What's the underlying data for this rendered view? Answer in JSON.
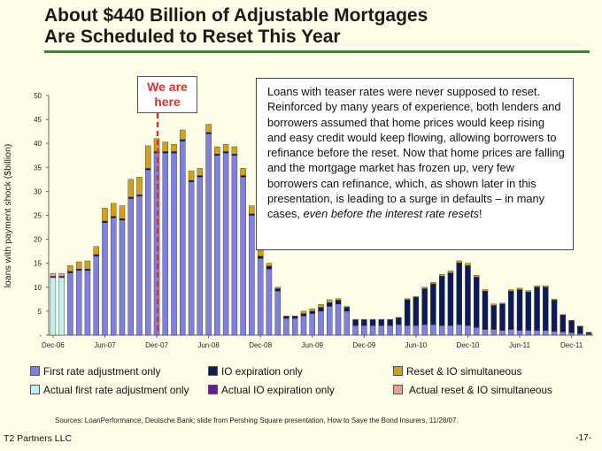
{
  "title": {
    "line1": "About $440 Billion of Adjustable Mortgages",
    "line2": "Are Scheduled to Reset This Year"
  },
  "callout": {
    "text_main": "Loans with teaser rates were never supposed to reset.  Reinforced by many years of experience, both lenders and borrowers assumed that home prices would keep rising and easy credit would keep flowing, allowing borrowers to refinance before the reset.  Now that home prices are falling and the mortgage market has frozen up, very few borrowers can refinance, which, as shown later in this presentation, is leading to a surge in defaults – in many cases, ",
    "text_em": "even before the interest rate resets",
    "text_end": "!"
  },
  "marker": {
    "label_line1": "We are",
    "label_line2": "here",
    "index": 12
  },
  "source_note": "Sources: LoanPerformance, Deutsche Bank; slide from Pershing Square presentation, How to Save the Bond Insurers, 11/28/07.",
  "footer": {
    "company": "T2 Partners LLC",
    "page": "-17-"
  },
  "colors": {
    "first_rate": "#8080e0",
    "io_expiration": "#0a1a5a",
    "reset_io": "#d4a017",
    "actual_first": "#c0f0f0",
    "actual_io": "#6a1a8a",
    "actual_reset": "#e8a090",
    "marker": "#e0312b"
  },
  "legend": [
    {
      "label": "First rate adjustment only",
      "color": "#8080e0"
    },
    {
      "label": "IO expiration only",
      "color": "#0a1a5a"
    },
    {
      "label": "Reset & IO simultaneous",
      "color": "#d4a017"
    },
    {
      "label": "Actual first rate adjustment only",
      "color": "#c0f0f0"
    },
    {
      "label": "Actual IO expiration only",
      "color": "#6a1a8a"
    },
    {
      "label": "Actual reset & IO simultaneous",
      "color": "#e8a090"
    }
  ],
  "chart_data": {
    "type": "bar",
    "stacked": true,
    "title": "",
    "ylabel": "loans with payment shock ($billion)",
    "xlabel": "",
    "ylim": [
      0,
      50
    ],
    "yticks": [
      0,
      5,
      10,
      15,
      20,
      25,
      30,
      35,
      40,
      45,
      50
    ],
    "ytick_labels": [
      "-",
      "5",
      "10",
      "15",
      "20",
      "25",
      "30",
      "35",
      "40",
      "45",
      "50"
    ],
    "grid": false,
    "legend_position": "bottom",
    "xtick_labels": [
      {
        "label": "Dec-06",
        "index": 0
      },
      {
        "label": "Jun-07",
        "index": 6
      },
      {
        "label": "Dec-07",
        "index": 12
      },
      {
        "label": "Jun-08",
        "index": 18
      },
      {
        "label": "Dec-08",
        "index": 24
      },
      {
        "label": "Jun-09",
        "index": 30
      },
      {
        "label": "Dec-09",
        "index": 36
      },
      {
        "label": "Jun-10",
        "index": 42
      },
      {
        "label": "Dec-10",
        "index": 48
      },
      {
        "label": "Jun-11",
        "index": 54
      },
      {
        "label": "Dec-11",
        "index": 60
      }
    ],
    "categories": [
      "Dec-06",
      "Jan-07",
      "Feb-07",
      "Mar-07",
      "Apr-07",
      "May-07",
      "Jun-07",
      "Jul-07",
      "Aug-07",
      "Sep-07",
      "Oct-07",
      "Nov-07",
      "Dec-07",
      "Jan-08",
      "Feb-08",
      "Mar-08",
      "Apr-08",
      "May-08",
      "Jun-08",
      "Jul-08",
      "Aug-08",
      "Sep-08",
      "Oct-08",
      "Nov-08",
      "Dec-08",
      "Jan-09",
      "Feb-09",
      "Mar-09",
      "Apr-09",
      "May-09",
      "Jun-09",
      "Jul-09",
      "Aug-09",
      "Sep-09",
      "Oct-09",
      "Nov-09",
      "Dec-09",
      "Jan-10",
      "Feb-10",
      "Mar-10",
      "Apr-10",
      "May-10",
      "Jun-10",
      "Jul-10",
      "Aug-10",
      "Sep-10",
      "Oct-10",
      "Nov-10",
      "Dec-10",
      "Jan-11",
      "Feb-11",
      "Mar-11",
      "Apr-11",
      "May-11",
      "Jun-11",
      "Jul-11",
      "Aug-11",
      "Sep-11",
      "Oct-11",
      "Nov-11",
      "Dec-11",
      "Jan-12",
      "Feb-12"
    ],
    "series": [
      {
        "name": "Actual first rate adjustment only",
        "values": [
          12,
          12,
          0,
          0,
          0,
          0,
          0,
          0,
          0,
          0,
          0,
          0,
          0,
          0,
          0,
          0,
          0,
          0,
          0,
          0,
          0,
          0,
          0,
          0,
          0,
          0,
          0,
          0,
          0,
          0,
          0,
          0,
          0,
          0,
          0,
          0,
          0,
          0,
          0,
          0,
          0,
          0,
          0,
          0,
          0,
          0,
          0,
          0,
          0,
          0,
          0,
          0,
          0,
          0,
          0,
          0,
          0,
          0,
          0,
          0,
          0,
          0,
          0
        ]
      },
      {
        "name": "Actual IO expiration only",
        "values": [
          0.3,
          0.3,
          0,
          0,
          0,
          0,
          0,
          0,
          0,
          0,
          0,
          0,
          0,
          0,
          0,
          0,
          0,
          0,
          0,
          0,
          0,
          0,
          0,
          0,
          0,
          0,
          0,
          0,
          0,
          0,
          0,
          0,
          0,
          0,
          0,
          0,
          0,
          0,
          0,
          0,
          0,
          0,
          0,
          0,
          0,
          0,
          0,
          0,
          0,
          0,
          0,
          0,
          0,
          0,
          0,
          0,
          0,
          0,
          0,
          0,
          0,
          0,
          0
        ]
      },
      {
        "name": "Actual reset & IO simultaneous",
        "values": [
          0.6,
          0.6,
          0,
          0,
          0,
          0,
          0,
          0,
          0,
          0,
          0,
          0,
          0,
          0,
          0,
          0,
          0,
          0,
          0,
          0,
          0,
          0,
          0,
          0,
          0,
          0,
          0,
          0,
          0,
          0,
          0,
          0,
          0,
          0,
          0,
          0,
          0,
          0,
          0,
          0,
          0,
          0,
          0,
          0,
          0,
          0,
          0,
          0,
          0,
          0,
          0,
          0,
          0,
          0,
          0,
          0,
          0,
          0,
          0,
          0,
          0,
          0,
          0
        ]
      },
      {
        "name": "First rate adjustment only",
        "values": [
          0,
          0,
          13,
          13.5,
          13.5,
          16.5,
          23.5,
          24.5,
          24,
          28.5,
          29,
          34.5,
          38,
          38,
          38,
          40.5,
          32,
          33,
          42,
          37.5,
          38,
          37.5,
          33,
          25,
          16,
          13.8,
          9.2,
          3.5,
          3.5,
          4,
          4.5,
          5,
          6,
          6.5,
          5,
          2,
          2,
          2,
          2,
          2,
          2.2,
          2,
          2,
          2.2,
          2.2,
          2,
          2,
          2.2,
          2,
          1.6,
          1.2,
          1.2,
          1,
          1.2,
          1,
          1,
          1,
          1,
          0.8,
          0.7,
          0.5,
          0.3,
          0.2
        ]
      },
      {
        "name": "IO expiration only",
        "values": [
          0,
          0,
          0.3,
          0.3,
          0.3,
          0.3,
          0.3,
          0.3,
          0.3,
          0.3,
          0.3,
          0.3,
          0.3,
          0.3,
          0.3,
          0.3,
          0.3,
          0.3,
          0.3,
          0.3,
          0.3,
          0.3,
          0.3,
          0.3,
          0.5,
          0.6,
          0.5,
          0.4,
          0.4,
          0.5,
          0.5,
          0.8,
          0.8,
          0.8,
          0.8,
          1.2,
          1.2,
          1.2,
          1.2,
          1.2,
          1.4,
          5.4,
          5.9,
          7.5,
          8.5,
          10.3,
          11,
          12.9,
          12.5,
          10.5,
          8,
          5,
          5.5,
          8,
          8.5,
          8,
          9,
          9,
          6.5,
          3.5,
          2.5,
          1.5,
          0.3
        ]
      },
      {
        "name": "Reset & IO simultaneous",
        "values": [
          0,
          0,
          1.2,
          1.5,
          1.7,
          1.7,
          2.7,
          2.7,
          2.7,
          3.7,
          3.7,
          4.7,
          2.7,
          2,
          1.5,
          2,
          2,
          1.5,
          1.7,
          1.5,
          1.5,
          1.5,
          1.5,
          1.7,
          1.2,
          0.6,
          0.3,
          0.1,
          0.1,
          0.5,
          0.5,
          0.6,
          0.6,
          0.3,
          0.2,
          0.1,
          0.1,
          0.1,
          0.1,
          0.1,
          0.1,
          0.2,
          0.2,
          0.3,
          0.3,
          0.4,
          0.4,
          0.4,
          0.5,
          0.4,
          0.3,
          0.3,
          0.2,
          0.3,
          0.3,
          0.3,
          0.3,
          0.3,
          0.2,
          0.1,
          0.1,
          0.1,
          0.1
        ]
      }
    ]
  }
}
